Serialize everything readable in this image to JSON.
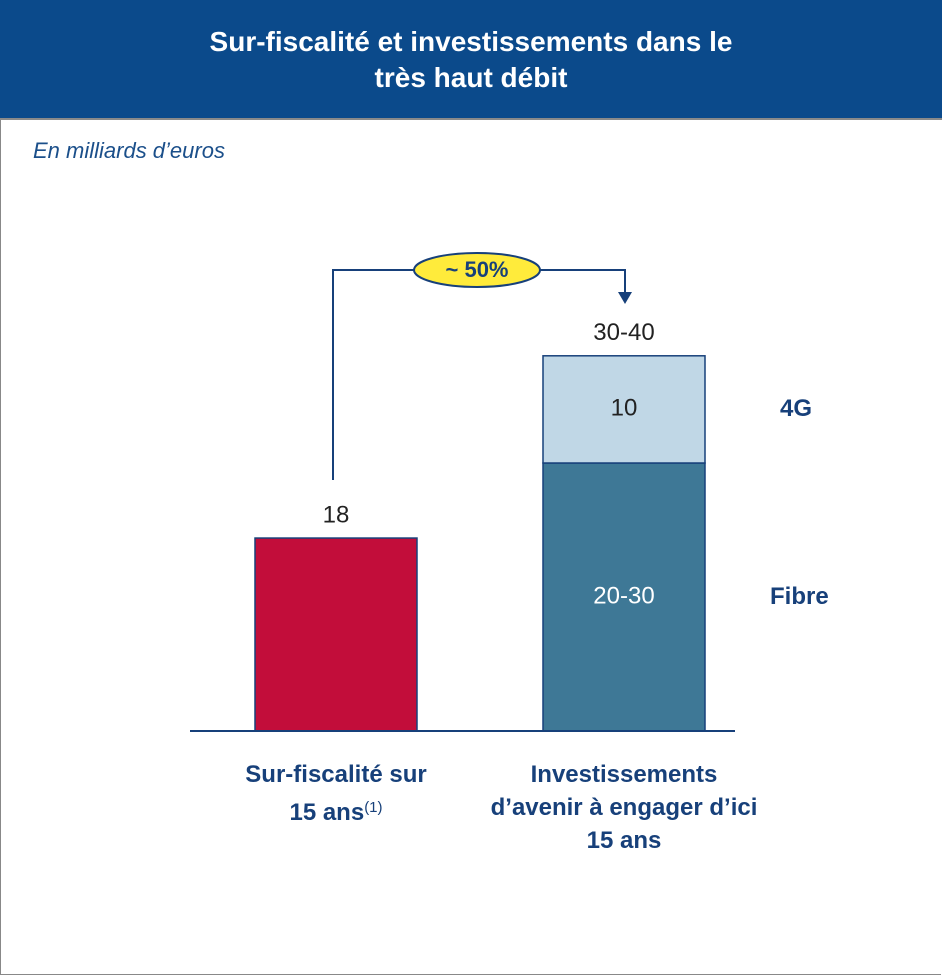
{
  "chart_data": {
    "type": "bar",
    "title": "Sur-fiscalité et investissements dans le très haut débit",
    "subtitle": "En milliards d’euros",
    "categories": [
      "Sur-fiscalité sur 15 ans",
      "Investissements d’avenir à engager d’ici 15 ans"
    ],
    "category_notes": [
      "(1)",
      null
    ],
    "series": [
      {
        "color": "#c20d3a",
        "values": [
          18,
          null
        ]
      },
      {
        "name": "Fibre",
        "color": "#3e7896",
        "values": [
          null,
          25
        ],
        "value_labels": [
          null,
          "20-30"
        ]
      },
      {
        "name": "4G",
        "color": "#c0d7e6",
        "values": [
          null,
          10
        ]
      }
    ],
    "total_labels": [
      null,
      "30-40"
    ],
    "annotation": "~ 50%"
  }
}
